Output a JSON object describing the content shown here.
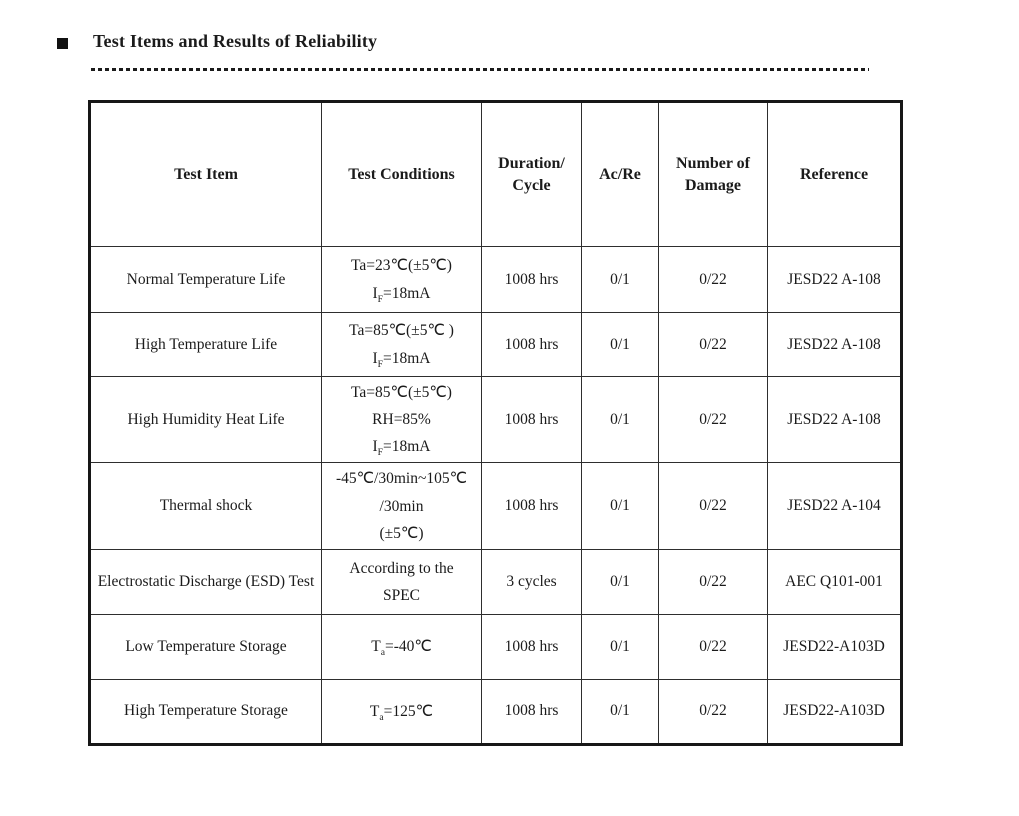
{
  "header": {
    "bullet_icon": "■",
    "title": "Test Items and Results of Reliability"
  },
  "table": {
    "columns": {
      "test_item": "Test Item",
      "test_conditions": "Test Conditions",
      "duration_cycle": "Duration/\nCycle",
      "ac_re": "Ac/Re",
      "number_of_damage": "Number of\nDamage",
      "reference": "Reference"
    },
    "rows": [
      {
        "test_item": "Normal Temperature Life",
        "test_conditions": "Ta=23℃(±5℃)\nI_{F}=18mA",
        "duration_cycle": "1008 hrs",
        "ac_re": "0/1",
        "number_of_damage": "0/22",
        "reference": "JESD22 A-108"
      },
      {
        "test_item": "High Temperature Life",
        "test_conditions": "Ta=85℃(±5℃ )\nI_{F}=18mA",
        "duration_cycle": "1008 hrs",
        "ac_re": "0/1",
        "number_of_damage": "0/22",
        "reference": "JESD22 A-108"
      },
      {
        "test_item": "High Humidity Heat Life",
        "test_conditions": "Ta=85℃(±5℃)\nRH=85%\nI_{F}=18mA",
        "duration_cycle": "1008 hrs",
        "ac_re": "0/1",
        "number_of_damage": "0/22",
        "reference": "JESD22 A-108"
      },
      {
        "test_item": "Thermal shock",
        "test_conditions": "-45℃/30min~105℃\n/30min\n(±5℃)",
        "duration_cycle": "1008 hrs",
        "ac_re": "0/1",
        "number_of_damage": "0/22",
        "reference": "JESD22 A-104"
      },
      {
        "test_item": "Electrostatic Discharge (ESD) Test",
        "test_conditions": "According to the\nSPEC",
        "duration_cycle": "3 cycles",
        "ac_re": "0/1",
        "number_of_damage": "0/22",
        "reference": "AEC Q101-001"
      },
      {
        "test_item": "Low Temperature Storage",
        "test_conditions": "T_{a}=-40℃",
        "duration_cycle": "1008 hrs",
        "ac_re": "0/1",
        "number_of_damage": "0/22",
        "reference": "JESD22-A103D"
      },
      {
        "test_item": "High Temperature Storage",
        "test_conditions": "T_{a}=125℃",
        "duration_cycle": "1008 hrs",
        "ac_re": "0/1",
        "number_of_damage": "0/22",
        "reference": "JESD22-A103D"
      }
    ]
  }
}
